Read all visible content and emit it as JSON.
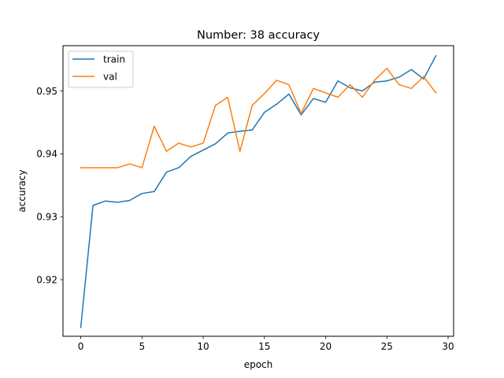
{
  "chart_data": {
    "type": "line",
    "title": "Number: 38 accuracy",
    "xlabel": "epoch",
    "ylabel": "accuracy",
    "xlim": [
      -1.45,
      30.45
    ],
    "ylim": [
      0.911,
      0.9572
    ],
    "xticks": [
      0,
      5,
      10,
      15,
      20,
      25,
      30
    ],
    "xtick_labels": [
      "0",
      "5",
      "10",
      "15",
      "20",
      "25",
      "30"
    ],
    "yticks": [
      0.92,
      0.93,
      0.94,
      0.95
    ],
    "ytick_labels": [
      "0.92",
      "0.93",
      "0.94",
      "0.95"
    ],
    "grid": false,
    "legend": "top-left",
    "x": [
      0,
      1,
      2,
      3,
      4,
      5,
      6,
      7,
      8,
      9,
      10,
      11,
      12,
      13,
      14,
      15,
      16,
      17,
      18,
      19,
      20,
      21,
      22,
      23,
      24,
      25,
      26,
      27,
      28,
      29
    ],
    "series": [
      {
        "name": "train",
        "color": "#1f77b4",
        "values": [
          0.9124,
          0.9318,
          0.9325,
          0.9323,
          0.9326,
          0.9337,
          0.934,
          0.9371,
          0.9378,
          0.9396,
          0.9406,
          0.9416,
          0.9433,
          0.9436,
          0.9438,
          0.9466,
          0.9479,
          0.9495,
          0.9462,
          0.9488,
          0.9482,
          0.9516,
          0.9505,
          0.95,
          0.9514,
          0.9516,
          0.9522,
          0.9534,
          0.9519,
          0.9556
        ]
      },
      {
        "name": "val",
        "color": "#ff7f0e",
        "values": [
          0.9378,
          0.9378,
          0.9378,
          0.9378,
          0.9384,
          0.9378,
          0.9444,
          0.9404,
          0.9417,
          0.9411,
          0.9417,
          0.9477,
          0.949,
          0.9404,
          0.9477,
          0.9496,
          0.9517,
          0.951,
          0.9464,
          0.9504,
          0.9497,
          0.949,
          0.951,
          0.949,
          0.9517,
          0.9536,
          0.951,
          0.9504,
          0.9523,
          0.9497
        ]
      }
    ]
  }
}
